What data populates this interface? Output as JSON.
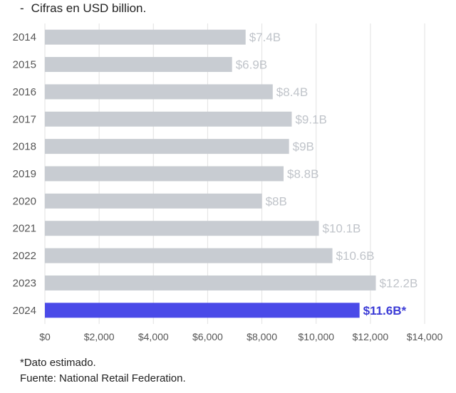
{
  "subtitle": "Cifras en USD billion.",
  "subtitle_dash": "-",
  "chart_data": {
    "type": "bar",
    "orientation": "horizontal",
    "categories": [
      "2014",
      "2015",
      "2016",
      "2017",
      "2018",
      "2019",
      "2020",
      "2021",
      "2022",
      "2023",
      "2024"
    ],
    "values": [
      7.4,
      6.9,
      8.4,
      9.1,
      9.0,
      8.8,
      8.0,
      10.1,
      10.6,
      12.2,
      11.6
    ],
    "data_labels": [
      "$7.4B",
      "$6.9B",
      "$8.4B",
      "$9.1B",
      "$9B",
      "$8.8B",
      "$8B",
      "$10.1B",
      "$10.6B",
      "$12.2B",
      "$11.6B*"
    ],
    "x_ticks": [
      "$0",
      "$2,000",
      "$4,000",
      "$6,000",
      "$8,000",
      "$10,000",
      "$12,000",
      "$14,000"
    ],
    "xlim": [
      0,
      14
    ],
    "grid": "vertical",
    "colors": {
      "bar": "#c8ccd2",
      "highlight": "#4a4ae8",
      "label": "#c0c4ca",
      "highlight_label": "#3b3bd6",
      "axis_text": "#555555",
      "grid": "#e2e2e2"
    },
    "highlight_index": 10
  },
  "footnotes": {
    "note": "*Dato estimado.",
    "source": "Fuente: National Retail Federation."
  }
}
